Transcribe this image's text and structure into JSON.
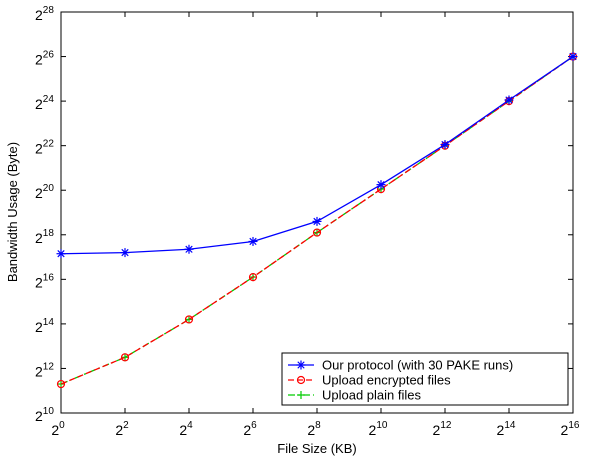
{
  "chart_data": {
    "type": "line",
    "xlabel": "File Size (KB)",
    "ylabel": "Bandwidth Usage (Byte)",
    "x_log2": [
      0,
      2,
      4,
      6,
      8,
      10,
      12,
      14,
      16
    ],
    "x_tick_labels": [
      {
        "base": "2",
        "exp": "0"
      },
      {
        "base": "2",
        "exp": "2"
      },
      {
        "base": "2",
        "exp": "4"
      },
      {
        "base": "2",
        "exp": "6"
      },
      {
        "base": "2",
        "exp": "8"
      },
      {
        "base": "2",
        "exp": "10"
      },
      {
        "base": "2",
        "exp": "12"
      },
      {
        "base": "2",
        "exp": "14"
      },
      {
        "base": "2",
        "exp": "16"
      }
    ],
    "y_tick_labels": [
      {
        "base": "2",
        "exp": "10"
      },
      {
        "base": "2",
        "exp": "12"
      },
      {
        "base": "2",
        "exp": "14"
      },
      {
        "base": "2",
        "exp": "16"
      },
      {
        "base": "2",
        "exp": "18"
      },
      {
        "base": "2",
        "exp": "20"
      },
      {
        "base": "2",
        "exp": "22"
      },
      {
        "base": "2",
        "exp": "24"
      },
      {
        "base": "2",
        "exp": "26"
      },
      {
        "base": "2",
        "exp": "28"
      }
    ],
    "xlim_log2": [
      0,
      16
    ],
    "ylim_log2": [
      10,
      28
    ],
    "scale": "log2",
    "grid": false,
    "legend_position": "bottom-right",
    "series": [
      {
        "name": "Our protocol (with 30 PAKE runs)",
        "color": "#0000ff",
        "marker": "asterisk",
        "line_style": "solid",
        "y_log2": [
          17.15,
          17.2,
          17.35,
          17.7,
          18.6,
          20.25,
          22.05,
          24.05,
          26.0
        ]
      },
      {
        "name": "Upload encrypted files",
        "color": "#ff0000",
        "marker": "circle",
        "line_style": "dashed",
        "y_log2": [
          11.3,
          12.5,
          14.2,
          16.1,
          18.1,
          20.05,
          22.0,
          24.0,
          26.0
        ]
      },
      {
        "name": "Upload plain files",
        "color": "#00cc00",
        "marker": "plus",
        "line_style": "dashdot",
        "y_log2": [
          11.3,
          12.5,
          14.2,
          16.1,
          18.1,
          20.05,
          22.0,
          24.0,
          26.0
        ]
      }
    ]
  }
}
